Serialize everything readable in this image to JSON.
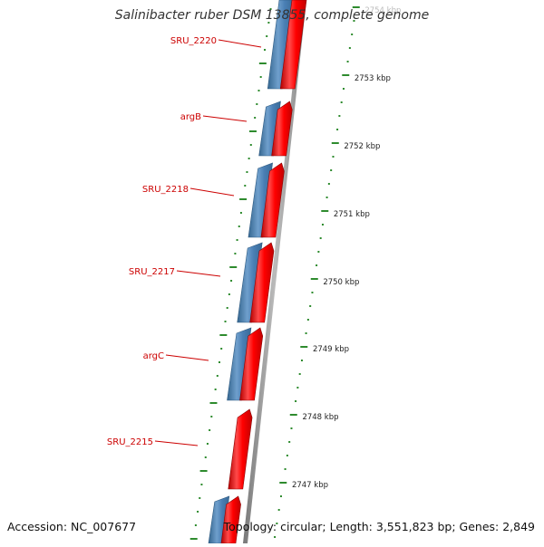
{
  "title": "Salinibacter ruber DSM 13855, complete genome",
  "footer": {
    "accession": "Accession: NC_007677",
    "summary": "Topology: circular; Length: 3,551,823 bp; Genes: 2,849"
  },
  "colors": {
    "forward_strand": "#ff0000",
    "reverse_strand": "#4a7fb5",
    "backbone": "#999999",
    "tick": "#2e8b2e",
    "gene_label": "#cc0000",
    "scale_label": "#222222"
  },
  "scale": {
    "unit": "kbp",
    "labels": [
      "2754 kbp",
      "2753 kbp",
      "2752 kbp",
      "2751 kbp",
      "2750 kbp",
      "2749 kbp",
      "2748 kbp",
      "2747 kbp"
    ]
  },
  "genes": [
    {
      "label": "SRU_2220"
    },
    {
      "label": "argB"
    },
    {
      "label": "SRU_2218"
    },
    {
      "label": "SRU_2217"
    },
    {
      "label": "argC"
    },
    {
      "label": "SRU_2215"
    }
  ]
}
